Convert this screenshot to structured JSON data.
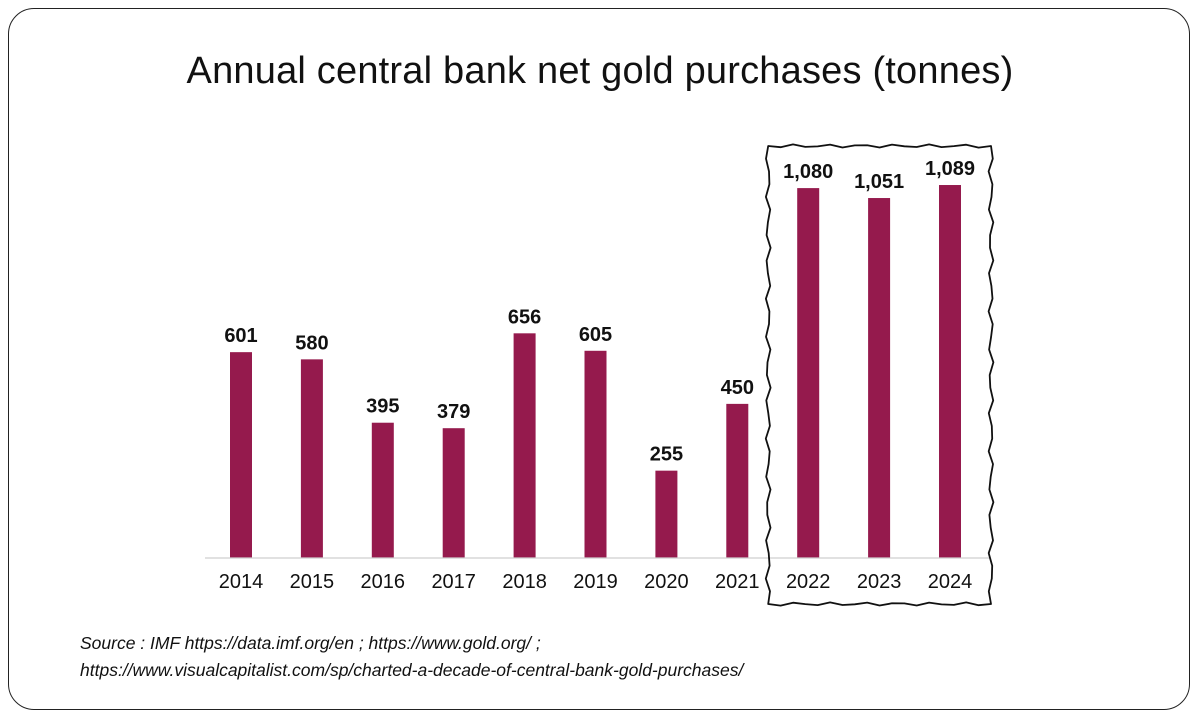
{
  "chart_data": {
    "type": "bar",
    "title": "Annual central bank net gold purchases (tonnes)",
    "categories": [
      "2014",
      "2015",
      "2016",
      "2017",
      "2018",
      "2019",
      "2020",
      "2021",
      "2022",
      "2023",
      "2024"
    ],
    "values": [
      601,
      580,
      395,
      379,
      656,
      605,
      255,
      450,
      1080,
      1051,
      1089
    ],
    "value_labels": [
      "601",
      "580",
      "395",
      "379",
      "656",
      "605",
      "255",
      "450",
      "1,080",
      "1,051",
      "1,089"
    ],
    "ylim": [
      0,
      1200
    ],
    "grid": false,
    "bar_color": "#951A4D",
    "highlight": {
      "from": "2022",
      "to": "2024",
      "style": "hand-drawn box"
    }
  },
  "source": {
    "line1": "Source : IMF  https://data.imf.org/en ; https://www.gold.org/ ;",
    "line2": "https://www.visualcapitalist.com/sp/charted-a-decade-of-central-bank-gold-purchases/"
  }
}
